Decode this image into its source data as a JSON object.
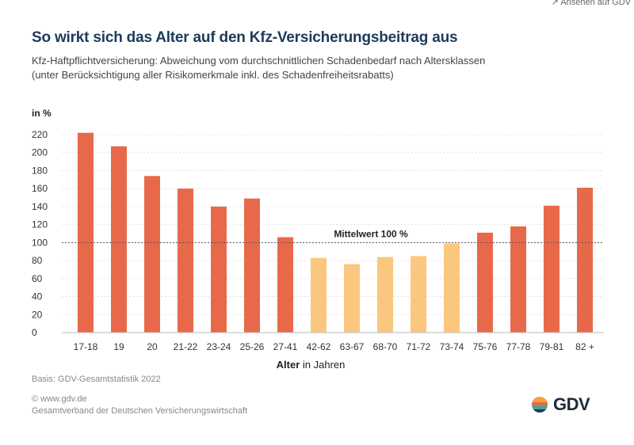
{
  "corner_text": "↗ Ansehen auf GDV",
  "title": "So wirkt sich das Alter auf den Kfz-Versicherungsbeitrag aus",
  "subtitle_line1": "Kfz-Haftpflichtversicherung: Abweichung vom durchschnittlichen Schadenbedarf nach Altersklassen",
  "subtitle_line2": "(unter Berücksichtigung aller Risikomerkmale inkl. des Schadenfreiheitsrabatts)",
  "unit_label": "in %",
  "source": "Basis: GDV-Gesamtstatistik 2022",
  "footer_line1": "© www.gdv.de",
  "footer_line2": "Gesamtverband der Deutschen Versicherungswirtschaft",
  "logo_text": "GDV",
  "colors": {
    "above": "#e8694a",
    "below": "#fbc77e",
    "title": "#1d3a5a"
  },
  "chart_data": {
    "type": "bar",
    "categories": [
      "17-18",
      "19",
      "20",
      "21-22",
      "23-24",
      "25-26",
      "27-41",
      "42-62",
      "63-67",
      "68-70",
      "71-72",
      "73-74",
      "75-76",
      "77-78",
      "79-81",
      "82 +"
    ],
    "values": [
      222,
      207,
      174,
      160,
      140,
      149,
      106,
      83,
      76,
      84,
      85,
      99,
      111,
      118,
      141,
      161
    ],
    "ylim": [
      0,
      220
    ],
    "yticks": [
      0,
      20,
      40,
      60,
      80,
      100,
      120,
      140,
      160,
      180,
      200,
      220
    ],
    "xlabel_bold": "Alter",
    "xlabel_rest": " in Jahren",
    "reference_line": {
      "value": 100,
      "label": "Mittelwert 100 %"
    },
    "grid": true
  }
}
